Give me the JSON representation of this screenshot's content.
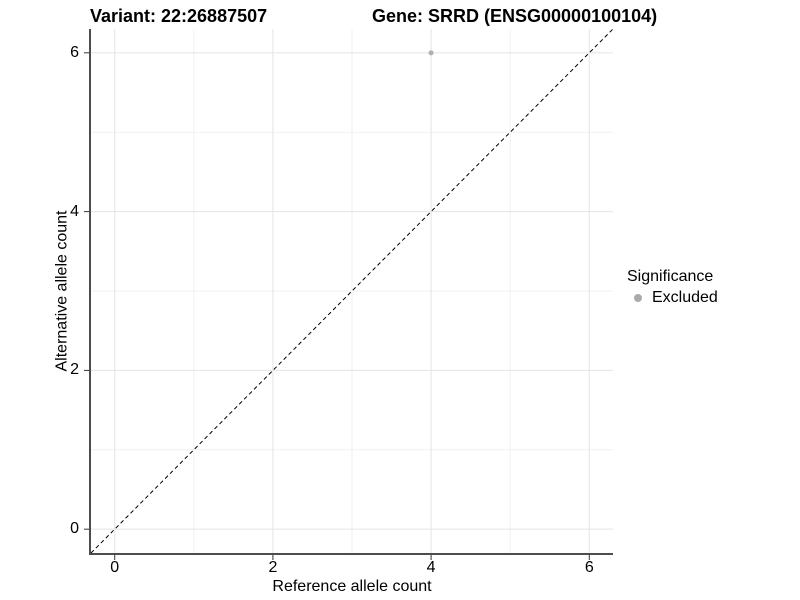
{
  "page": {
    "background": "#ffffff"
  },
  "header": {
    "variant_title": "Variant: 22:26887507",
    "gene_title": "Gene: SRRD (ENSG00000100104)"
  },
  "chart_data": {
    "type": "scatter",
    "xlabel": "Reference allele count",
    "ylabel": "Alternative allele count",
    "xlim": [
      -0.3,
      6.3
    ],
    "ylim": [
      -0.3,
      6.3
    ],
    "xticks": [
      0,
      2,
      4,
      6
    ],
    "yticks": [
      0,
      2,
      4,
      6
    ],
    "xticks_minor": [
      1,
      3,
      5
    ],
    "yticks_minor": [
      1,
      3,
      5
    ],
    "grid": true,
    "points": [
      {
        "x": 4,
        "y": 6,
        "series": "Excluded"
      }
    ],
    "identity_line": {
      "slope": 1,
      "intercept": 0,
      "style": "dashed",
      "color": "#000000"
    },
    "legend": {
      "title": "Significance",
      "position": "right",
      "items": [
        {
          "label": "Excluded",
          "color": "#aaaaaa"
        }
      ]
    },
    "colors": {
      "grid_major": "#e4e4e4",
      "grid_minor": "#f1f1f1",
      "axis": "#4d4d4d",
      "tick": "#333333",
      "point": "#b0b0b0"
    }
  }
}
